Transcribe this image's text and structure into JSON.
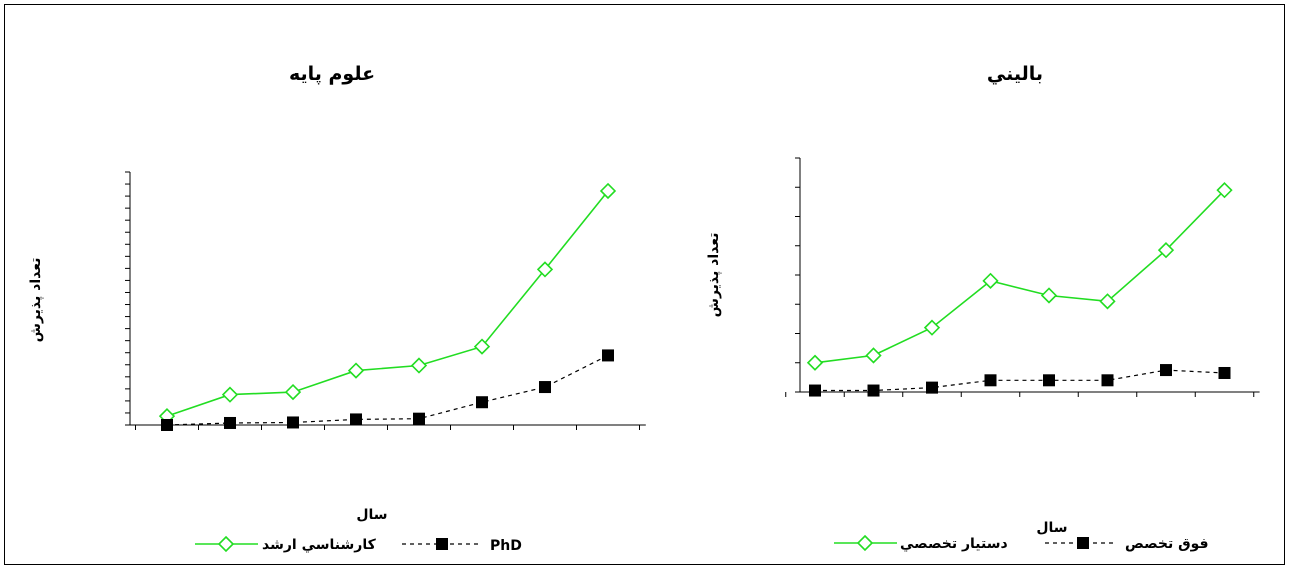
{
  "chart_data": [
    {
      "type": "line",
      "title": "علوم  پايه",
      "xlabel": "سال",
      "ylabel": "تعداد  پذيرش",
      "categories": [
        "",
        "",
        "",
        "",
        "",
        "",
        "",
        ""
      ],
      "ylim": [
        0,
        1000
      ],
      "series": [
        {
          "name": "كارشناسي ارشد",
          "color": "#22dd22",
          "style": "solid",
          "marker": "open-diamond",
          "values": [
            35,
            120,
            130,
            215,
            235,
            310,
            615,
            925
          ]
        },
        {
          "name": "PhD",
          "color": "#000000",
          "style": "dashed",
          "marker": "filled-square",
          "values": [
            0,
            8,
            10,
            22,
            25,
            90,
            150,
            275
          ]
        }
      ]
    },
    {
      "type": "line",
      "title": "باليني",
      "xlabel": "سال",
      "ylabel": "تعداد  پذيرش",
      "categories": [
        "",
        "",
        "",
        "",
        "",
        "",
        "",
        ""
      ],
      "ylim": [
        0,
        800
      ],
      "series": [
        {
          "name": "فوق تخصص",
          "color": "#000000",
          "style": "dashed",
          "marker": "filled-square",
          "values": [
            5,
            5,
            15,
            40,
            40,
            40,
            75,
            65
          ]
        },
        {
          "name": "دستيار تخصصي",
          "color": "#22dd22",
          "style": "solid",
          "marker": "open-diamond",
          "values": [
            100,
            125,
            220,
            380,
            330,
            310,
            485,
            690
          ]
        }
      ]
    }
  ]
}
